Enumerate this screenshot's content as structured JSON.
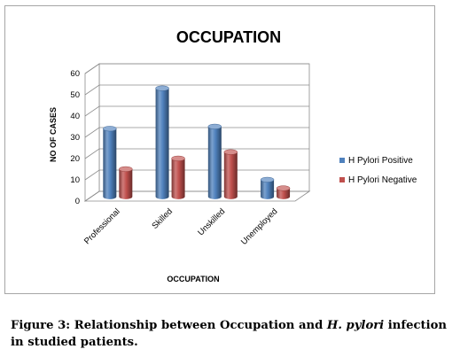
{
  "chart_data": {
    "type": "bar",
    "title": "OCCUPATION",
    "xlabel": "OCCUPATION",
    "ylabel": "NO OF CASES",
    "ylim": [
      0,
      60
    ],
    "yticks": [
      "0",
      "10",
      "20",
      "30",
      "40",
      "50",
      "60"
    ],
    "categories": [
      "Professional",
      "Skilled",
      "Unskilled",
      "Unemployed"
    ],
    "series": [
      {
        "name": "H Pylori Positive",
        "values": [
          32,
          51,
          33,
          8
        ],
        "color": "#4f81bd"
      },
      {
        "name": "H Pylori Negative",
        "values": [
          13,
          18,
          21,
          4
        ],
        "color": "#c0504d"
      }
    ],
    "grid": true,
    "legend_position": "right",
    "style": "3d-cylinder"
  },
  "caption": {
    "prefix": "Figure 3: Relationship between Occupation and ",
    "italic": "H. pylori",
    "suffix": " infection in studied patients."
  }
}
